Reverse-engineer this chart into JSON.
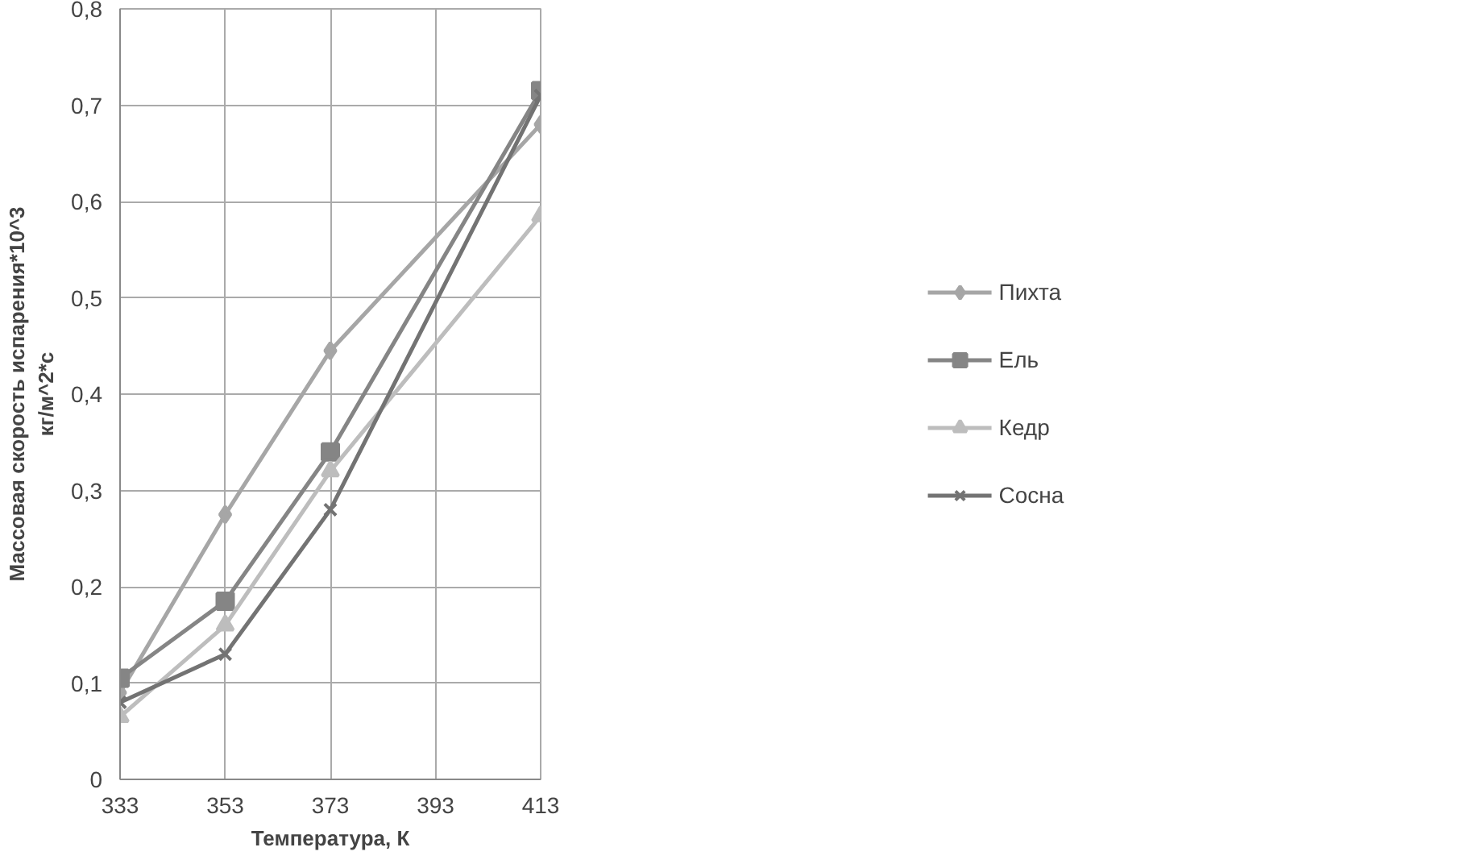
{
  "chart_data": {
    "type": "line",
    "xlabel": "Температура, К",
    "ylabel": "Массовая скорость испарения*10^3\nкг/м^2*с",
    "x": [
      333,
      353,
      373,
      413
    ],
    "series": [
      {
        "name": "Пихта",
        "color": "#a6a6a6",
        "marker": "diamond",
        "values": [
          0.09,
          0.275,
          0.445,
          0.68
        ]
      },
      {
        "name": "Ель",
        "color": "#858585",
        "marker": "square",
        "values": [
          0.105,
          0.185,
          0.34,
          0.715
        ]
      },
      {
        "name": "Кедр",
        "color": "#bdbdbd",
        "marker": "triangle",
        "values": [
          0.065,
          0.16,
          0.32,
          0.585
        ]
      },
      {
        "name": "Сосна",
        "color": "#737373",
        "marker": "cross",
        "values": [
          0.08,
          0.13,
          0.28,
          0.71
        ]
      }
    ],
    "xlim": [
      333,
      413
    ],
    "xticks": [
      333,
      353,
      373,
      393,
      413
    ],
    "ylim": [
      0,
      0.8
    ],
    "yticks": [
      0,
      {
        "value": 0.1,
        "label": "0,1"
      },
      {
        "value": 0.2,
        "label": "0,2"
      },
      {
        "value": 0.3,
        "label": "0,3"
      },
      {
        "value": 0.4,
        "label": "0,4"
      },
      {
        "value": 0.5,
        "label": "0,5"
      },
      {
        "value": 0.6,
        "label": "0,6"
      },
      {
        "value": 0.7,
        "label": "0,7"
      },
      {
        "value": 0.8,
        "label": "0,8"
      }
    ],
    "grid": true,
    "legend": "right",
    "line_style": "solid"
  }
}
